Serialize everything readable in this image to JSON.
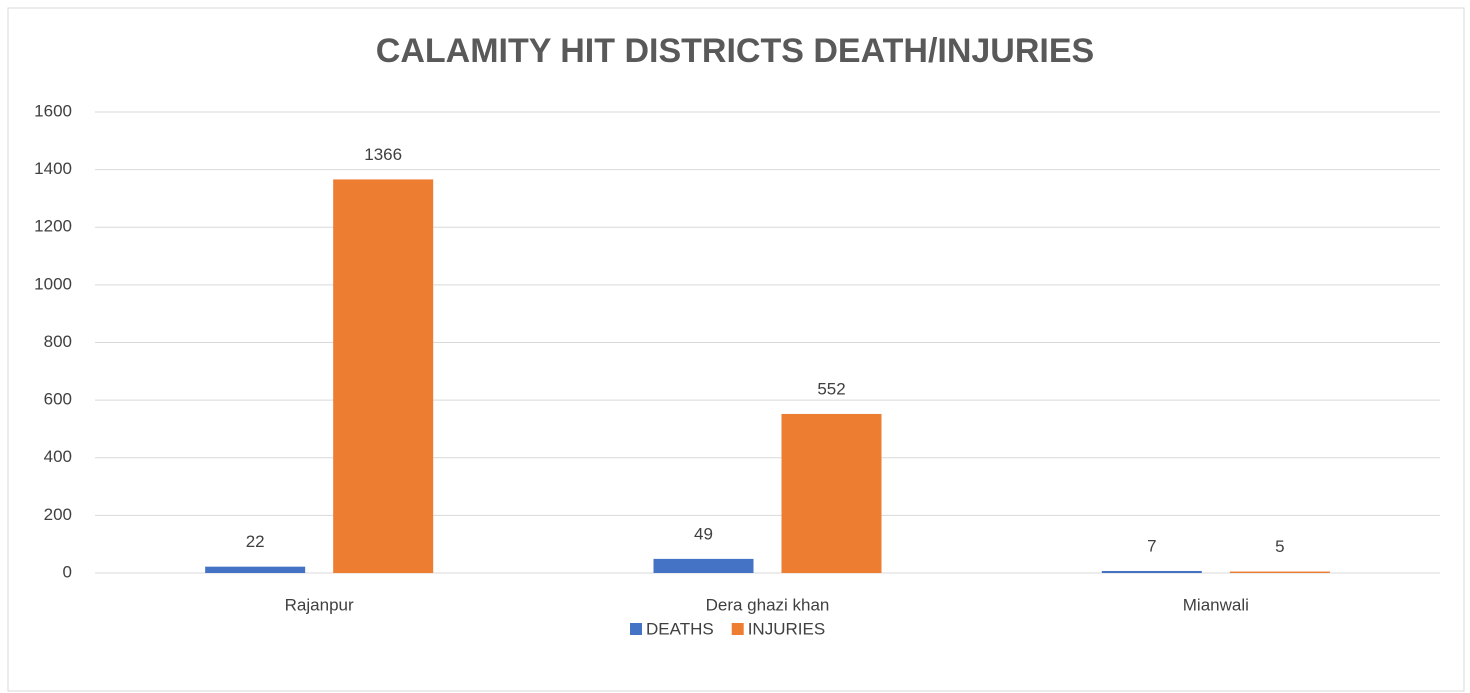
{
  "chart_data": {
    "type": "bar",
    "title": "CALAMITY HIT DISTRICTS DEATH/INJURIES",
    "categories": [
      "Rajanpur",
      "Dera ghazi khan",
      "Mianwali"
    ],
    "series": [
      {
        "name": "DEATHS",
        "color": "#4472c4",
        "values": [
          22,
          49,
          7
        ]
      },
      {
        "name": "INJURIES",
        "color": "#ed7d31",
        "values": [
          1366,
          552,
          5
        ]
      }
    ],
    "ylim": [
      0,
      1600
    ],
    "yticks": [
      0,
      200,
      400,
      600,
      800,
      1000,
      1200,
      1400,
      1600
    ],
    "grid": true,
    "legend": "bottom"
  }
}
